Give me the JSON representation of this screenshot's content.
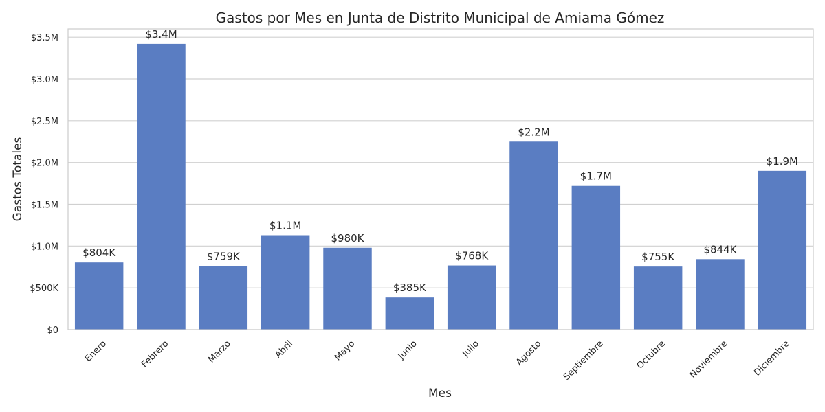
{
  "chart_data": {
    "type": "bar",
    "title": "Gastos por Mes en Junta de Distrito Municipal de Amiama Gómez",
    "xlabel": "Mes",
    "ylabel": "Gastos Totales",
    "categories": [
      "Enero",
      "Febrero",
      "Marzo",
      "Abril",
      "Mayo",
      "Junio",
      "Julio",
      "Agosto",
      "Septiembre",
      "Octubre",
      "Noviembre",
      "Diciembre"
    ],
    "values": [
      804000,
      3420000,
      759000,
      1130000,
      980000,
      385000,
      768000,
      2250000,
      1720000,
      755000,
      844000,
      1900000
    ],
    "data_labels": [
      "$804K",
      "$3.4M",
      "$759K",
      "$1.1M",
      "$980K",
      "$385K",
      "$768K",
      "$2.2M",
      "$1.7M",
      "$755K",
      "$844K",
      "$1.9M"
    ],
    "ylim": [
      0,
      3600000
    ],
    "yticks": [
      0,
      500000,
      1000000,
      1500000,
      2000000,
      2500000,
      3000000,
      3500000
    ],
    "ytick_labels": [
      "$0",
      "$500K",
      "$1.0M",
      "$1.5M",
      "$2.0M",
      "$2.5M",
      "$3.0M",
      "$3.5M"
    ],
    "grid": true,
    "bar_color": "#5a7dc2"
  }
}
